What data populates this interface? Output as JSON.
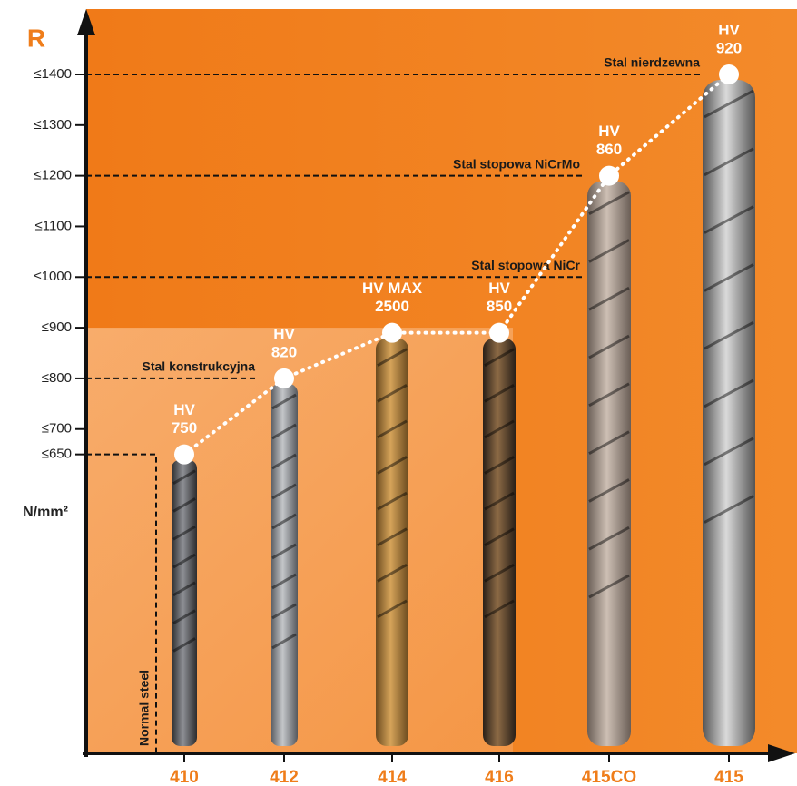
{
  "chart_data": {
    "type": "line",
    "y_axis_label": "R",
    "y_unit_label": "N/mm²",
    "categories": [
      "410",
      "412",
      "414",
      "416",
      "415CO",
      "415"
    ],
    "series": [
      {
        "color": "#ffffff",
        "values": [
          650,
          800,
          890,
          890,
          1200,
          1400
        ]
      }
    ],
    "hardness_labels": [
      [
        "HV",
        "750"
      ],
      [
        "HV",
        "820"
      ],
      [
        "HV MAX",
        "2500"
      ],
      [
        "HV",
        "850"
      ],
      [
        "HV",
        "860"
      ],
      [
        "HV",
        "920"
      ]
    ],
    "reference_lines": [
      {
        "value": 1400,
        "label": "Stal nierdzewna"
      },
      {
        "value": 1200,
        "label": "Stal stopowa NiCrMo"
      },
      {
        "value": 1000,
        "label": "Stal stopowa NiCr"
      },
      {
        "value": 800,
        "label": "Stal konstrukcyjna"
      },
      {
        "value": 650,
        "label": "Normal steel"
      }
    ],
    "ylim": [
      60,
      1520
    ],
    "yticks": [
      {
        "value": 650,
        "label": "≤650"
      },
      {
        "value": 700,
        "label": "≤700"
      },
      {
        "value": 800,
        "label": "≤800"
      },
      {
        "value": 900,
        "label": "≤900"
      },
      {
        "value": 1000,
        "label": "≤1000"
      },
      {
        "value": 1100,
        "label": "≤1100"
      },
      {
        "value": 1200,
        "label": "≤1200"
      },
      {
        "value": 1300,
        "label": "≤1300"
      },
      {
        "value": 1400,
        "label": "≤1400"
      }
    ],
    "grid": false
  }
}
